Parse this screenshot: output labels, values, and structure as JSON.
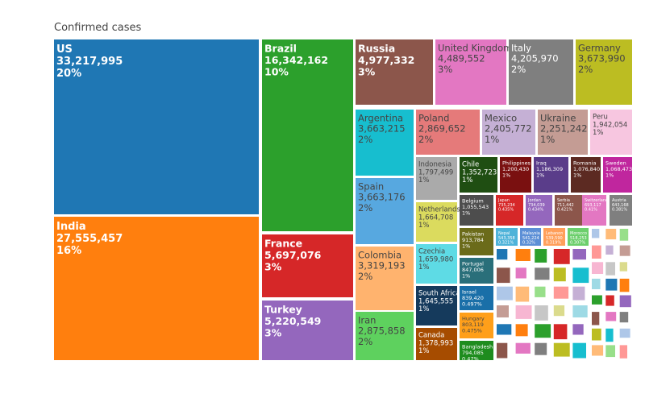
{
  "chart_data": {
    "type": "treemap",
    "title": "Confirmed cases",
    "items": [
      {
        "name": "US",
        "value": "33,217,995",
        "pct": "20%",
        "color": "#1f77b4",
        "text": "#ffffff"
      },
      {
        "name": "India",
        "value": "27,555,457",
        "pct": "16%",
        "color": "#ff7f0e",
        "text": "#ffffff"
      },
      {
        "name": "Brazil",
        "value": "16,342,162",
        "pct": "10%",
        "color": "#2ca02c",
        "text": "#ffffff"
      },
      {
        "name": "France",
        "value": "5,697,076",
        "pct": "3%",
        "color": "#d62728",
        "text": "#ffffff"
      },
      {
        "name": "Turkey",
        "value": "5,220,549",
        "pct": "3%",
        "color": "#9467bd",
        "text": "#ffffff"
      },
      {
        "name": "Russia",
        "value": "4,977,332",
        "pct": "3%",
        "color": "#8c564b",
        "text": "#ffffff"
      },
      {
        "name": "United Kingdom",
        "value": "4,489,552",
        "pct": "3%",
        "color": "#e377c2",
        "text": "#444444"
      },
      {
        "name": "Italy",
        "value": "4,205,970",
        "pct": "2%",
        "color": "#7f7f7f",
        "text": "#ffffff"
      },
      {
        "name": "Germany",
        "value": "3,673,990",
        "pct": "2%",
        "color": "#bcbd22",
        "text": "#444444"
      },
      {
        "name": "Argentina",
        "value": "3,663,215",
        "pct": "2%",
        "color": "#17becf",
        "text": "#444444"
      },
      {
        "name": "Spain",
        "value": "3,663,176",
        "pct": "2%",
        "color": "#57a8e0",
        "text": "#444444"
      },
      {
        "name": "Colombia",
        "value": "3,319,193",
        "pct": "2%",
        "color": "#ffb36e",
        "text": "#444444"
      },
      {
        "name": "Iran",
        "value": "2,875,858",
        "pct": "2%",
        "color": "#5ed15e",
        "text": "#444444"
      },
      {
        "name": "Poland",
        "value": "2,869,652",
        "pct": "2%",
        "color": "#e57a7a",
        "text": "#444444"
      },
      {
        "name": "Mexico",
        "value": "2,405,772",
        "pct": "1%",
        "color": "#c5b0d5",
        "text": "#444444"
      },
      {
        "name": "Ukraine",
        "value": "2,251,242",
        "pct": "1%",
        "color": "#c49c94",
        "text": "#444444"
      },
      {
        "name": "Peru",
        "value": "1,942,054",
        "pct": "1%",
        "color": "#f7c6e0",
        "text": "#444444"
      },
      {
        "name": "Indonesia",
        "value": "1,797,499",
        "pct": "1%",
        "color": "#aaaaaa",
        "text": "#444444"
      },
      {
        "name": "Chile",
        "value": "1,352,723",
        "pct": "1%",
        "color": "#1f4e12",
        "text": "#ffffff"
      },
      {
        "name": "Philippines",
        "value": "1,200,430",
        "pct": "1%",
        "color": "#7a1010",
        "text": "#ffffff"
      },
      {
        "name": "Iraq",
        "value": "1,186,309",
        "pct": "1%",
        "color": "#5a3d8a",
        "text": "#ffffff"
      },
      {
        "name": "Romania",
        "value": "1,076,840",
        "pct": "1%",
        "color": "#5c2a22",
        "text": "#ffffff"
      },
      {
        "name": "Sweden",
        "value": "1,068,473",
        "pct": "1%",
        "color": "#c0269e",
        "text": "#ffffff"
      },
      {
        "name": "Netherlands",
        "value": "1,664,708",
        "pct": "1%",
        "color": "#dbdb5e",
        "text": "#444444"
      },
      {
        "name": "Belgium",
        "value": "1,055,543",
        "pct": "1%",
        "color": "#4d4d4d",
        "text": "#ffffff"
      },
      {
        "name": "Japan",
        "value": "735,234",
        "pct": "0.435%",
        "color": "#d62728",
        "text": "#ffffff"
      },
      {
        "name": "Jordan",
        "value": "734,039",
        "pct": "0.434%",
        "color": "#9467bd",
        "text": "#ffffff"
      },
      {
        "name": "Serbia",
        "value": "711,442",
        "pct": "0.421%",
        "color": "#8c564b",
        "text": "#ffffff"
      },
      {
        "name": "Switzerland",
        "value": "693,117",
        "pct": "0.41%",
        "color": "#e377c2",
        "text": "#ffffff"
      },
      {
        "name": "Austria",
        "value": "643,168",
        "pct": "0.381%",
        "color": "#7f7f7f",
        "text": "#ffffff"
      },
      {
        "name": "Czechia",
        "value": "1,659,980",
        "pct": "1%",
        "color": "#5edbe5",
        "text": "#444444"
      },
      {
        "name": "Pakistan",
        "value": "913,784",
        "pct": "1%",
        "color": "#6b6b1a",
        "text": "#ffffff"
      },
      {
        "name": "Nepal",
        "value": "543,358",
        "pct": "0.321%",
        "color": "#4fb3d9",
        "text": "#ffffff"
      },
      {
        "name": "Malaysia",
        "value": "541,224",
        "pct": "0.32%",
        "color": "#5c8fd6",
        "text": "#ffffff"
      },
      {
        "name": "Lebanon",
        "value": "539,590",
        "pct": "0.319%",
        "color": "#ff9f5a",
        "text": "#ffffff"
      },
      {
        "name": "Morocco",
        "value": "518,253",
        "pct": "0.307%",
        "color": "#6ccf6c",
        "text": "#ffffff"
      },
      {
        "name": "Portugal",
        "value": "847,006",
        "pct": "1%",
        "color": "#2a6f7a",
        "text": "#ffffff"
      },
      {
        "name": "South Africa",
        "value": "1,645,555",
        "pct": "1%",
        "color": "#153a5c",
        "text": "#ffffff"
      },
      {
        "name": "Israel",
        "value": "839,420",
        "pct": "0.497%",
        "color": "#1a6fa8",
        "text": "#ffffff"
      },
      {
        "name": "Hungary",
        "value": "803,119",
        "pct": "0.475%",
        "color": "#ff9f1a",
        "text": "#444444"
      },
      {
        "name": "Canada",
        "value": "1,378,993",
        "pct": "1%",
        "color": "#a64c00",
        "text": "#ffffff"
      },
      {
        "name": "Bangladesh",
        "value": "794,085",
        "pct": "0.47%",
        "color": "#1e8c1e",
        "text": "#ffffff"
      }
    ]
  }
}
